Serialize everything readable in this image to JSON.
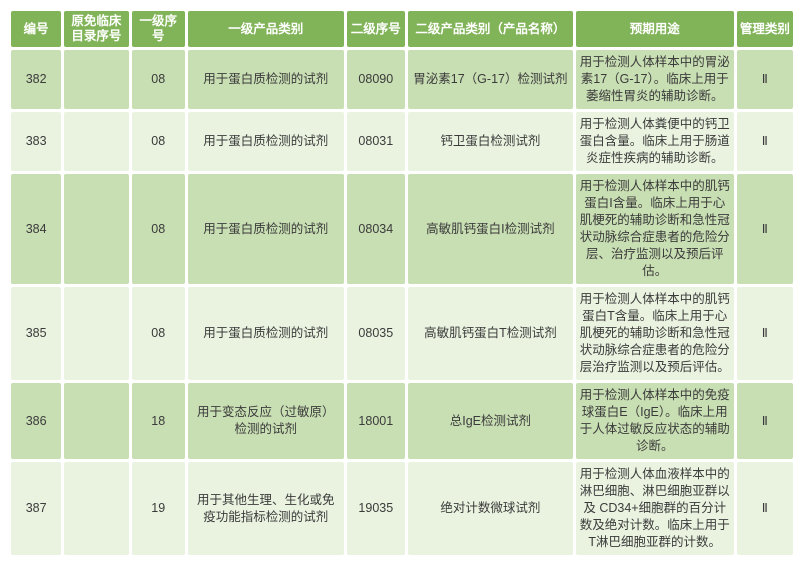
{
  "colors": {
    "header_bg": "#81b458",
    "header_text": "#ffffff",
    "row_dark": "#c8deb3",
    "row_light": "#eaf3e0",
    "text": "#3b3b3b"
  },
  "table": {
    "columns": [
      "编号",
      "原免临床目录序号",
      "一级序号",
      "一级产品类别",
      "二级序号",
      "二级产品类别（产品名称）",
      "预期用途",
      "管理类别"
    ],
    "rows": [
      {
        "cells": [
          "382",
          "",
          "08",
          "用于蛋白质检测的试剂",
          "08090",
          "胃泌素17（G-17）检测试剂",
          "用于检测人体样本中的胃泌素17（G-17）。临床上用于萎缩性胃炎的辅助诊断。",
          "Ⅱ"
        ]
      },
      {
        "cells": [
          "383",
          "",
          "08",
          "用于蛋白质检测的试剂",
          "08031",
          "钙卫蛋白检测试剂",
          "用于检测人体粪便中的钙卫蛋白含量。临床上用于肠道炎症性疾病的辅助诊断。",
          "Ⅱ"
        ]
      },
      {
        "cells": [
          "384",
          "",
          "08",
          "用于蛋白质检测的试剂",
          "08034",
          "高敏肌钙蛋白I检测试剂",
          "用于检测人体样本中的肌钙蛋白I含量。临床上用于心肌梗死的辅助诊断和急性冠状动脉综合症患者的危险分层、治疗监测以及预后评估。",
          "Ⅱ"
        ]
      },
      {
        "cells": [
          "385",
          "",
          "08",
          "用于蛋白质检测的试剂",
          "08035",
          "高敏肌钙蛋白T检测试剂",
          "用于检测人体样本中的肌钙蛋白T含量。临床上用于心肌梗死的辅助诊断和急性冠状动脉综合症患者的危险分层治疗监测以及预后评估。",
          "Ⅱ"
        ]
      },
      {
        "cells": [
          "386",
          "",
          "18",
          "用于变态反应（过敏原）检测的试剂",
          "18001",
          "总IgE检测试剂",
          "用于检测人体样本中的免疫球蛋白E（IgE）。临床上用于人体过敏反应状态的辅助诊断。",
          "Ⅱ"
        ]
      },
      {
        "cells": [
          "387",
          "",
          "19",
          "用于其他生理、生化或免疫功能指标检测的试剂",
          "19035",
          "绝对计数微球试剂",
          "用于检测人体血液样本中的淋巴细胞、淋巴细胞亚群以及 CD34+细胞群的百分计数及绝对计数。临床上用于T淋巴细胞亚群的计数。",
          "Ⅱ"
        ]
      }
    ]
  }
}
